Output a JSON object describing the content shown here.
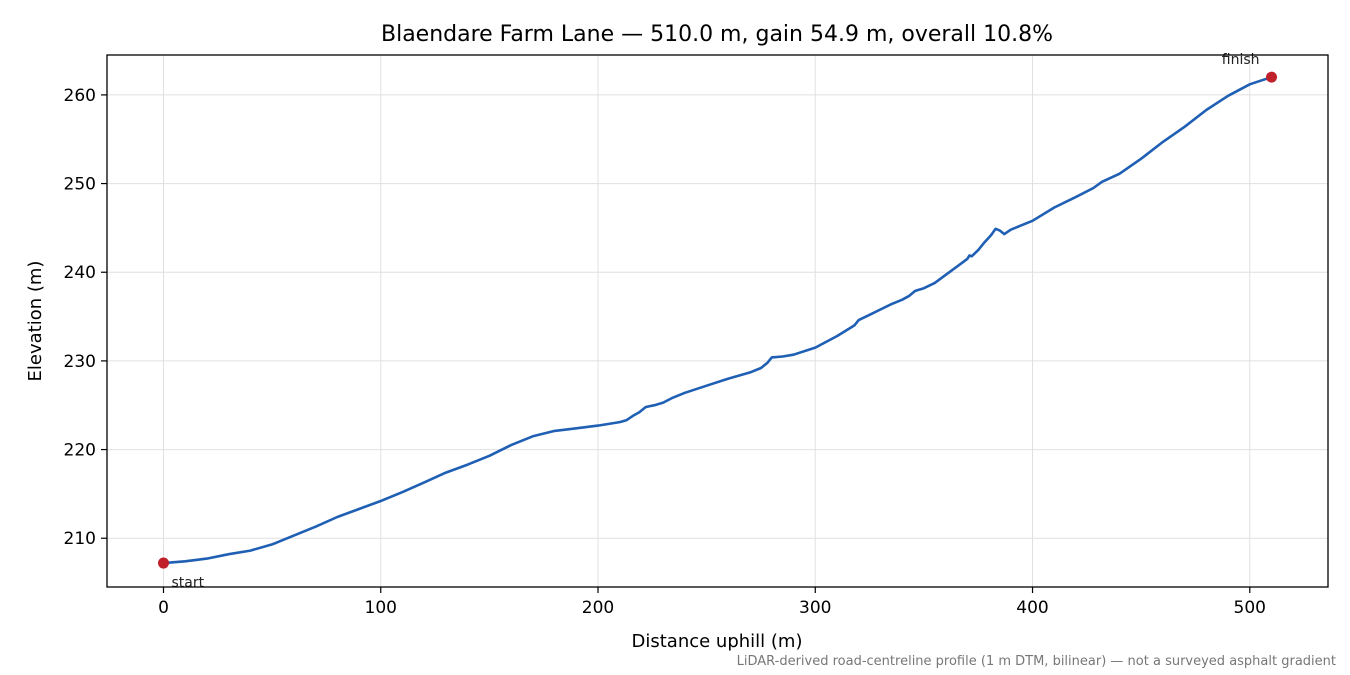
{
  "chart_data": {
    "type": "line",
    "title": "Blaendare Farm Lane — 510.0 m, gain 54.9 m, overall 10.8%",
    "xlabel": "Distance uphill (m)",
    "ylabel": "Elevation (m)",
    "footnote": "LiDAR-derived road-centreline profile (1 m DTM, bilinear) — not a surveyed asphalt gradient",
    "xlim": [
      -26,
      536
    ],
    "ylim": [
      204.5,
      264.5
    ],
    "xticks": [
      0,
      100,
      200,
      300,
      400,
      500
    ],
    "yticks": [
      210,
      220,
      230,
      240,
      250,
      260
    ],
    "grid": true,
    "colors": {
      "line": "#1f5fb4",
      "marker": "#c0202a",
      "grid": "#e0e0e0"
    },
    "series": [
      {
        "x": [
          0,
          5,
          10,
          20,
          30,
          40,
          50,
          60,
          70,
          80,
          90,
          100,
          110,
          120,
          130,
          140,
          150,
          160,
          170,
          180,
          190,
          200,
          210,
          213,
          216,
          219,
          222,
          226,
          230,
          234,
          240,
          250,
          260,
          270,
          275,
          278,
          280,
          285,
          290,
          300,
          310,
          318,
          320,
          325,
          330,
          335,
          340,
          343,
          346,
          350,
          355,
          360,
          365,
          370,
          371,
          372,
          375,
          378,
          381,
          383,
          385,
          387,
          390,
          395,
          400,
          410,
          420,
          428,
          432,
          440,
          450,
          460,
          470,
          480,
          490,
          500,
          505,
          510
        ],
        "y": [
          207.2,
          207.3,
          207.4,
          207.7,
          208.2,
          208.6,
          209.3,
          210.3,
          211.3,
          212.4,
          213.3,
          214.2,
          215.2,
          216.3,
          217.4,
          218.3,
          219.3,
          220.5,
          221.5,
          222.1,
          222.4,
          222.7,
          223.1,
          223.3,
          223.8,
          224.2,
          224.8,
          225.0,
          225.3,
          225.8,
          226.4,
          227.2,
          228.0,
          228.7,
          229.2,
          229.8,
          230.4,
          230.5,
          230.7,
          231.5,
          232.8,
          234.0,
          234.6,
          235.2,
          235.8,
          236.4,
          236.9,
          237.3,
          237.9,
          238.2,
          238.8,
          239.7,
          240.6,
          241.5,
          241.9,
          241.8,
          242.5,
          243.4,
          244.2,
          244.9,
          244.7,
          244.3,
          244.8,
          245.3,
          245.8,
          247.3,
          248.5,
          249.5,
          250.2,
          251.1,
          252.8,
          254.7,
          256.4,
          258.3,
          259.9,
          261.2,
          261.6,
          262.0
        ]
      }
    ],
    "markers": [
      {
        "label": "start",
        "x": 0,
        "y": 207.2
      },
      {
        "label": "finish",
        "x": 510,
        "y": 262.0
      }
    ]
  }
}
